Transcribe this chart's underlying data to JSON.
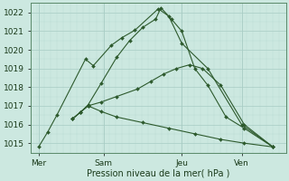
{
  "xlabel": "Pression niveau de la mer( hPa )",
  "bg_color": "#cce8e0",
  "grid_color": "#a8ccc4",
  "line_color": "#2d5a2d",
  "ylim": [
    1014.5,
    1022.5
  ],
  "yticks": [
    1015,
    1016,
    1017,
    1018,
    1019,
    1020,
    1021,
    1022
  ],
  "xtick_labels": [
    "Mer",
    "Sam",
    "Jeu",
    "Ven"
  ],
  "xtick_positions": [
    0.0,
    2.5,
    5.5,
    7.8
  ],
  "xlim": [
    -0.3,
    9.5
  ],
  "line_data": {
    "line1": {
      "x": [
        0.0,
        0.35,
        0.7,
        1.8,
        2.1,
        2.8,
        3.2,
        3.7,
        4.6,
        5.0,
        5.5,
        6.5,
        7.8,
        9.0
      ],
      "y": [
        1014.8,
        1015.6,
        1016.5,
        1019.5,
        1019.15,
        1020.25,
        1020.65,
        1021.05,
        1022.2,
        1021.8,
        1020.35,
        1019.0,
        1016.0,
        1014.8
      ]
    },
    "line2": {
      "x": [
        1.3,
        1.6,
        1.9,
        2.4,
        3.0,
        3.5,
        4.0,
        4.5,
        4.7,
        5.1,
        5.5,
        6.0,
        6.5,
        7.2,
        7.9,
        9.0
      ],
      "y": [
        1016.3,
        1016.65,
        1017.05,
        1018.2,
        1019.6,
        1020.5,
        1021.2,
        1021.65,
        1022.25,
        1021.65,
        1021.0,
        1019.0,
        1018.1,
        1016.4,
        1015.8,
        1014.8
      ]
    },
    "line3": {
      "x": [
        1.3,
        1.6,
        1.9,
        2.4,
        3.0,
        3.8,
        4.3,
        4.8,
        5.3,
        5.8,
        6.3,
        7.0,
        7.9,
        9.0
      ],
      "y": [
        1016.3,
        1016.65,
        1017.0,
        1017.2,
        1017.5,
        1017.9,
        1018.3,
        1018.7,
        1019.0,
        1019.2,
        1019.0,
        1018.1,
        1016.0,
        1014.8
      ]
    },
    "line4": {
      "x": [
        1.3,
        1.6,
        1.9,
        2.4,
        3.0,
        4.0,
        5.0,
        6.0,
        7.0,
        7.9,
        9.0
      ],
      "y": [
        1016.3,
        1016.65,
        1017.0,
        1016.7,
        1016.4,
        1016.1,
        1015.8,
        1015.5,
        1015.2,
        1015.0,
        1014.8
      ]
    }
  },
  "marker_size": 2.0,
  "line_width": 0.8,
  "xlabel_fontsize": 7.0,
  "tick_fontsize": 6.5
}
